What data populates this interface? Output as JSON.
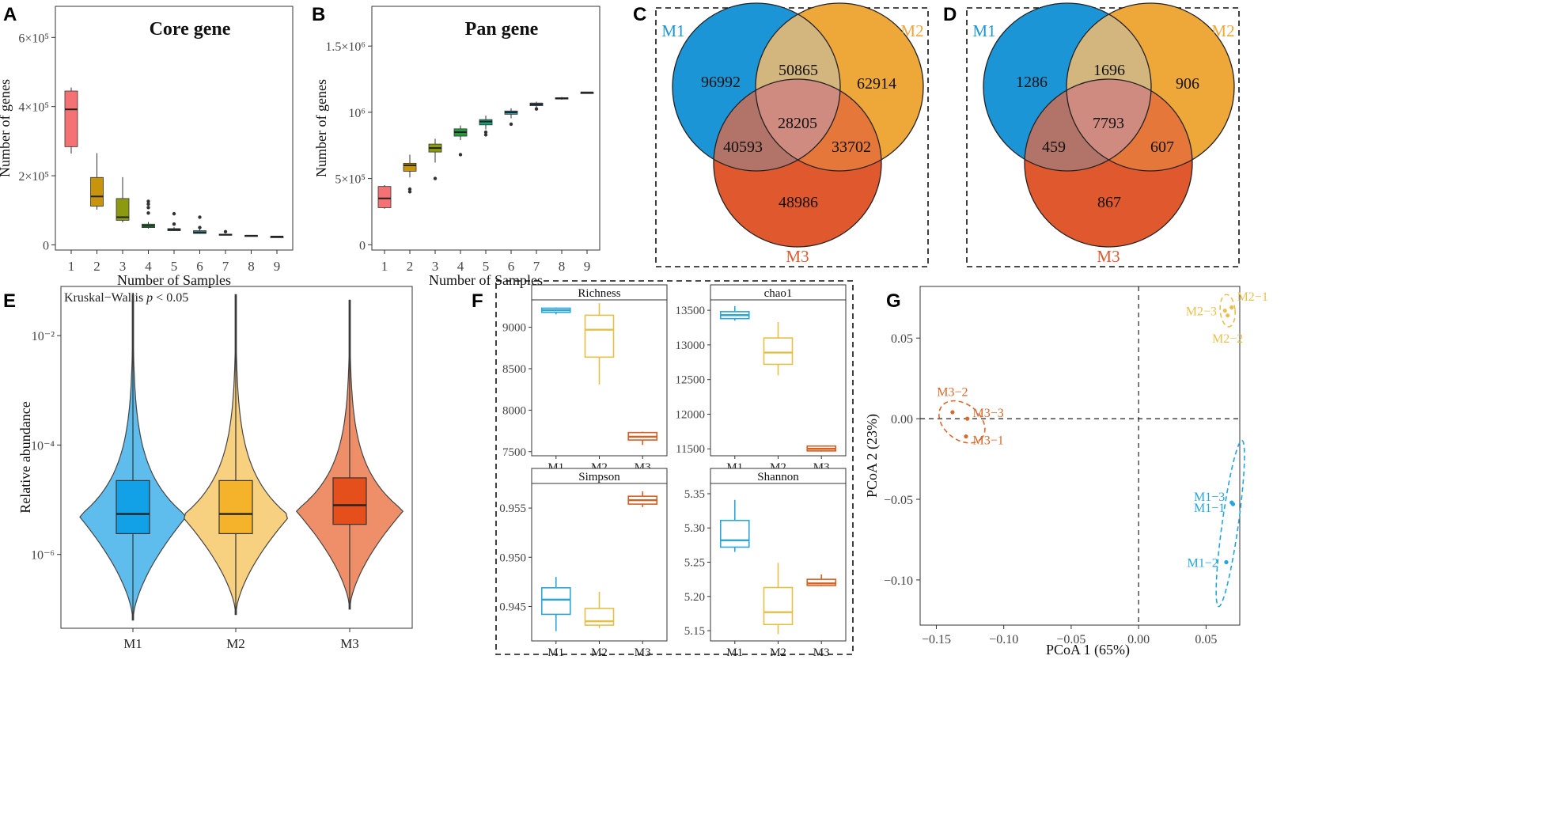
{
  "colors": {
    "m1": "#1b95d6",
    "m2": "#eea839",
    "m3": "#e0582d",
    "m1_violin": "#5fbdee",
    "m1_box": "#12a0e6",
    "m2_violin": "#f7d080",
    "m2_box": "#f5b22b",
    "m3_violin": "#ee8f6a",
    "m3_box": "#e44f1b",
    "alpha_m1": "#2aa6d8",
    "alpha_m2": "#e5c049",
    "alpha_m3": "#d75f22",
    "pca_m1": "#22a6dd",
    "pca_m2": "#e8c050",
    "pca_m3": "#d8692c",
    "box_colors": [
      "#f47274",
      "#c8940c",
      "#8c9a12",
      "#249a3a",
      "#16a07a",
      "#1aa0b2",
      "#4b84c4",
      "#8f62be",
      "#bf56b2"
    ]
  },
  "panels": {
    "A": "A",
    "B": "B",
    "C": "C",
    "D": "D",
    "E": "E",
    "F": "F",
    "G": "G"
  },
  "chart_data": [
    {
      "id": "A",
      "type": "box",
      "title": "Core gene",
      "xlabel": "Number of Samples",
      "ylabel": "Number of genes",
      "ylim": [
        -15000,
        690000
      ],
      "yticks": [
        {
          "value": 0,
          "label": "0"
        },
        {
          "value": 200000,
          "label": "2×10⁵"
        },
        {
          "value": 400000,
          "label": "4×10⁵"
        },
        {
          "value": 600000,
          "label": "6×10⁵"
        }
      ],
      "categories": [
        "1",
        "2",
        "3",
        "4",
        "5",
        "6",
        "7",
        "8",
        "9"
      ],
      "boxes": [
        {
          "wlo": 264000,
          "q1": 284000,
          "med": 392000,
          "q3": 445000,
          "whi": 455000,
          "outliers": []
        },
        {
          "wlo": 102000,
          "q1": 112000,
          "med": 140000,
          "q3": 195000,
          "whi": 265000,
          "outliers": []
        },
        {
          "wlo": 65000,
          "q1": 71000,
          "med": 80000,
          "q3": 134000,
          "whi": 196000,
          "outliers": []
        },
        {
          "wlo": 47000,
          "q1": 50000,
          "med": 55000,
          "q3": 60000,
          "whi": 66000,
          "outliers": [
            108000,
            118000,
            126000,
            92000
          ]
        },
        {
          "wlo": 40000,
          "q1": 41000,
          "med": 44000,
          "q3": 47000,
          "whi": 51000,
          "outliers": [
            90000,
            60000
          ]
        },
        {
          "wlo": 32000,
          "q1": 33000,
          "med": 36000,
          "q3": 41000,
          "whi": 45000,
          "outliers": [
            80000,
            50000
          ]
        },
        {
          "wlo": 28000,
          "q1": 28500,
          "med": 29500,
          "q3": 31000,
          "whi": 32000,
          "outliers": [
            38000
          ]
        },
        {
          "wlo": 25000,
          "q1": 25500,
          "med": 26500,
          "q3": 27500,
          "whi": 28000,
          "outliers": []
        },
        {
          "wlo": 24000,
          "q1": 24000,
          "med": 24000,
          "q3": 24000,
          "whi": 24000,
          "outliers": []
        }
      ]
    },
    {
      "id": "B",
      "type": "box",
      "title": "Pan gene",
      "xlabel": "Number of Samples",
      "ylabel": "Number of genes",
      "ylim": [
        -40000,
        1800000
      ],
      "yticks": [
        {
          "value": 0,
          "label": "0"
        },
        {
          "value": 500000,
          "label": "5×10⁵"
        },
        {
          "value": 1000000,
          "label": "10⁶"
        },
        {
          "value": 1500000,
          "label": "1.5×10⁶"
        }
      ],
      "categories": [
        "1",
        "2",
        "3",
        "4",
        "5",
        "6",
        "7",
        "8",
        "9"
      ],
      "boxes": [
        {
          "wlo": 272000,
          "q1": 280000,
          "med": 350000,
          "q3": 440000,
          "whi": 450000,
          "outliers": []
        },
        {
          "wlo": 508000,
          "q1": 555000,
          "med": 600000,
          "q3": 615000,
          "whi": 680000,
          "outliers": [
            400000,
            420000
          ]
        },
        {
          "wlo": 620000,
          "q1": 700000,
          "med": 730000,
          "q3": 760000,
          "whi": 800000,
          "outliers": [
            500000
          ]
        },
        {
          "wlo": 790000,
          "q1": 820000,
          "med": 850000,
          "q3": 875000,
          "whi": 900000,
          "outliers": [
            680000
          ]
        },
        {
          "wlo": 870000,
          "q1": 905000,
          "med": 930000,
          "q3": 945000,
          "whi": 975000,
          "outliers": [
            830000,
            850000
          ]
        },
        {
          "wlo": 955000,
          "q1": 985000,
          "med": 1000000,
          "q3": 1010000,
          "whi": 1030000,
          "outliers": [
            910000
          ]
        },
        {
          "wlo": 1035000,
          "q1": 1050000,
          "med": 1060000,
          "q3": 1070000,
          "whi": 1080000,
          "outliers": [
            1025000
          ]
        },
        {
          "wlo": 1095000,
          "q1": 1100000,
          "med": 1105000,
          "q3": 1110000,
          "whi": 1115000,
          "outliers": []
        },
        {
          "wlo": 1150000,
          "q1": 1150000,
          "med": 1150000,
          "q3": 1150000,
          "whi": 1150000,
          "outliers": []
        }
      ]
    },
    {
      "id": "C",
      "type": "venn",
      "sets": [
        "M1",
        "M2",
        "M3"
      ],
      "regions": {
        "m1_only": "96992",
        "m2_only": "62914",
        "m3_only": "48986",
        "m1_m2": "50865",
        "m1_m3": "40593",
        "m2_m3": "33702",
        "all": "28205"
      }
    },
    {
      "id": "D",
      "type": "venn",
      "sets": [
        "M1",
        "M2",
        "M3"
      ],
      "regions": {
        "m1_only": "1286",
        "m2_only": "906",
        "m3_only": "867",
        "m1_m2": "1696",
        "m1_m3": "459",
        "m2_m3": "607",
        "all": "7793"
      }
    },
    {
      "id": "E",
      "type": "violin",
      "annotation_prefix": "Kruskal−Wallis ",
      "annotation_p": "p",
      "annotation_suffix": " < 0.05",
      "ylabel": "Relative abundance",
      "yscale": "log10",
      "ylog_range": [
        -7.35,
        -1.1
      ],
      "yticks": [
        {
          "value": -6,
          "label": "10⁻⁶"
        },
        {
          "value": -4,
          "label": "10⁻⁴"
        },
        {
          "value": -2,
          "label": "10⁻²"
        }
      ],
      "categories": [
        "M1",
        "M2",
        "M3"
      ],
      "groups": [
        {
          "log_min": -7.2,
          "log_max": -1.25,
          "log_q1": -5.62,
          "log_med": -5.26,
          "log_q3": -4.65,
          "log_peak": -5.3
        },
        {
          "log_min": -7.1,
          "log_max": -1.25,
          "log_q1": -5.62,
          "log_med": -5.26,
          "log_q3": -4.65,
          "log_peak": -5.3
        },
        {
          "log_min": -7.0,
          "log_max": -1.35,
          "log_q1": -5.45,
          "log_med": -5.1,
          "log_q3": -4.6,
          "log_peak": -5.2
        }
      ]
    },
    {
      "id": "F",
      "type": "box-facets",
      "categories": [
        "M1",
        "M2",
        "M3"
      ],
      "facets": [
        {
          "title": "Richness",
          "ylim": [
            7450,
            9330
          ],
          "yticks": [
            {
              "value": 7500,
              "label": "7500"
            },
            {
              "value": 8000,
              "label": "8000"
            },
            {
              "value": 8500,
              "label": "8500"
            },
            {
              "value": 9000,
              "label": "9000"
            }
          ],
          "boxes": [
            {
              "wlo": 9155,
              "q1": 9180,
              "med": 9205,
              "q3": 9230,
              "whi": 9240
            },
            {
              "wlo": 8310,
              "q1": 8640,
              "med": 8970,
              "q3": 9145,
              "whi": 9290
            },
            {
              "wlo": 7580,
              "q1": 7640,
              "med": 7680,
              "q3": 7730,
              "whi": 7740
            }
          ]
        },
        {
          "title": "chao1",
          "ylim": [
            11400,
            13650
          ],
          "yticks": [
            {
              "value": 11500,
              "label": "11500"
            },
            {
              "value": 12000,
              "label": "12000"
            },
            {
              "value": 12500,
              "label": "12500"
            },
            {
              "value": 13000,
              "label": "13000"
            },
            {
              "value": 13500,
              "label": "13500"
            }
          ],
          "boxes": [
            {
              "wlo": 13350,
              "q1": 13380,
              "med": 13430,
              "q3": 13480,
              "whi": 13560
            },
            {
              "wlo": 12560,
              "q1": 12720,
              "med": 12890,
              "q3": 13100,
              "whi": 13330
            },
            {
              "wlo": 11460,
              "q1": 11470,
              "med": 11500,
              "q3": 11540,
              "whi": 11545
            }
          ]
        },
        {
          "title": "Simpson",
          "ylim": [
            0.9415,
            0.9575
          ],
          "yticks": [
            {
              "value": 0.945,
              "label": "0.945"
            },
            {
              "value": 0.95,
              "label": "0.950"
            },
            {
              "value": 0.955,
              "label": "0.955"
            }
          ],
          "boxes": [
            {
              "wlo": 0.9425,
              "q1": 0.9442,
              "med": 0.9457,
              "q3": 0.9469,
              "whi": 0.948
            },
            {
              "wlo": 0.9428,
              "q1": 0.9431,
              "med": 0.9435,
              "q3": 0.9448,
              "whi": 0.9465
            },
            {
              "wlo": 0.9551,
              "q1": 0.9554,
              "med": 0.9558,
              "q3": 0.9562,
              "whi": 0.9567
            }
          ]
        },
        {
          "title": "Shannon",
          "ylim": [
            5.135,
            5.365
          ],
          "yticks": [
            {
              "value": 5.15,
              "label": "5.15"
            },
            {
              "value": 5.2,
              "label": "5.20"
            },
            {
              "value": 5.25,
              "label": "5.25"
            },
            {
              "value": 5.3,
              "label": "5.30"
            },
            {
              "value": 5.35,
              "label": "5.35"
            }
          ],
          "boxes": [
            {
              "wlo": 5.265,
              "q1": 5.272,
              "med": 5.282,
              "q3": 5.311,
              "whi": 5.341
            },
            {
              "wlo": 5.145,
              "q1": 5.159,
              "med": 5.177,
              "q3": 5.213,
              "whi": 5.249
            },
            {
              "wlo": 5.215,
              "q1": 5.216,
              "med": 5.219,
              "q3": 5.225,
              "whi": 5.232
            }
          ]
        }
      ]
    },
    {
      "id": "G",
      "type": "scatter",
      "xlabel": "PCoA 1 (65%)",
      "ylabel": "PCoA 2 (23%)",
      "xlim": [
        -0.162,
        0.075
      ],
      "ylim": [
        -0.128,
        0.082
      ],
      "xticks": [
        {
          "value": -0.15,
          "label": "−0.15"
        },
        {
          "value": -0.1,
          "label": "−0.10"
        },
        {
          "value": -0.05,
          "label": "−0.05"
        },
        {
          "value": 0.0,
          "label": "0.00"
        },
        {
          "value": 0.05,
          "label": "0.05"
        }
      ],
      "yticks": [
        {
          "value": 0.05,
          "label": "0.05"
        },
        {
          "value": 0.0,
          "label": "0.00"
        },
        {
          "value": -0.05,
          "label": "−0.05"
        },
        {
          "value": -0.1,
          "label": "−0.10"
        }
      ],
      "points": [
        {
          "group": "M2",
          "label": "M2−1",
          "x": 0.069,
          "y": 0.069,
          "lx": 0.004,
          "ly": 0.007,
          "anchor": "start"
        },
        {
          "group": "M2",
          "label": "M2−3",
          "x": 0.064,
          "y": 0.067,
          "lx": -0.006,
          "ly": 0.0,
          "anchor": "end"
        },
        {
          "group": "M2",
          "label": "M2−2",
          "x": 0.066,
          "y": 0.064,
          "lx": 0.0,
          "ly": -0.014,
          "anchor": "middle"
        },
        {
          "group": "M3",
          "label": "M3−2",
          "x": -0.138,
          "y": 0.004,
          "lx": 0.0,
          "ly": 0.013,
          "anchor": "middle"
        },
        {
          "group": "M3",
          "label": "M3−3",
          "x": -0.127,
          "y": 0.0,
          "lx": 0.004,
          "ly": 0.004,
          "anchor": "start"
        },
        {
          "group": "M3",
          "label": "M3−1",
          "x": -0.128,
          "y": -0.011,
          "lx": 0.005,
          "ly": -0.002,
          "anchor": "start"
        },
        {
          "group": "M1",
          "label": "M1−3",
          "x": 0.069,
          "y": -0.052,
          "lx": -0.005,
          "ly": 0.004,
          "anchor": "end"
        },
        {
          "group": "M1",
          "label": "M1−1",
          "x": 0.07,
          "y": -0.053,
          "lx": -0.006,
          "ly": -0.002,
          "anchor": "end"
        },
        {
          "group": "M1",
          "label": "M1−2",
          "x": 0.065,
          "y": -0.089,
          "lx": -0.006,
          "ly": 0.0,
          "anchor": "end"
        }
      ],
      "ellipses": [
        {
          "group": "M2",
          "cx": 0.066,
          "cy": 0.067,
          "rx": 0.0055,
          "ry": 0.01,
          "angle_deg": 5
        },
        {
          "group": "M3",
          "cx": -0.131,
          "cy": -0.002,
          "rx": 0.019,
          "ry": 0.011,
          "angle_deg": -38
        },
        {
          "group": "M1",
          "cx": 0.068,
          "cy": -0.065,
          "rx": 0.052,
          "ry": 0.006,
          "angle_deg": 82
        }
      ]
    }
  ]
}
